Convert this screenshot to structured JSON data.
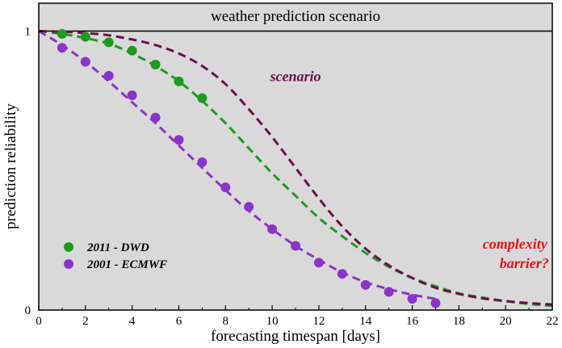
{
  "chart_data": {
    "type": "line",
    "title": "weather prediction scenario",
    "xlabel": "forecasting timespan [days]",
    "ylabel": "prediction reliability",
    "xlim": [
      0,
      22
    ],
    "ylim": [
      0,
      1.1
    ],
    "x_ticks": [
      "0",
      "2",
      "4",
      "6",
      "8",
      "10",
      "12",
      "14",
      "16",
      "18",
      "20",
      "22"
    ],
    "y_ticks": [
      "0",
      "1"
    ],
    "grid": false,
    "legend_position": "bottom-left",
    "colors": {
      "dwd": "#1f9a1f",
      "ecmwf": "#8a35c9",
      "scenario": "#6b0f4a",
      "complexity": "#ee1111",
      "background": "#d9d9d9"
    },
    "series": [
      {
        "name": "2011 - DWD",
        "kind": "points",
        "color": "#1f9a1f",
        "x": [
          1,
          2,
          3,
          4,
          5,
          6,
          7
        ],
        "y": [
          0.99,
          0.98,
          0.96,
          0.93,
          0.88,
          0.82,
          0.76
        ]
      },
      {
        "name": "2001 - ECMWF",
        "kind": "points",
        "color": "#8a35c9",
        "x": [
          1,
          2,
          3,
          4,
          5,
          6,
          7,
          8,
          9,
          10,
          11,
          12,
          13,
          14,
          15,
          16,
          17
        ],
        "y": [
          0.94,
          0.89,
          0.84,
          0.77,
          0.69,
          0.61,
          0.53,
          0.44,
          0.37,
          0.29,
          0.23,
          0.17,
          0.13,
          0.09,
          0.065,
          0.04,
          0.025
        ]
      },
      {
        "kind": "dashed-fit",
        "color": "#1f9a1f",
        "x": [
          0,
          1,
          2,
          3,
          4,
          5,
          6,
          7,
          8,
          9,
          10,
          11,
          12,
          13,
          14,
          15,
          16,
          17,
          18,
          19,
          20,
          21,
          22
        ],
        "y": [
          1.0,
          0.99,
          0.975,
          0.955,
          0.92,
          0.875,
          0.82,
          0.75,
          0.67,
          0.58,
          0.49,
          0.41,
          0.33,
          0.265,
          0.205,
          0.155,
          0.115,
          0.085,
          0.06,
          0.045,
          0.032,
          0.022,
          0.015
        ]
      },
      {
        "kind": "dashed-fit",
        "color": "#8a35c9",
        "x": [
          0,
          1,
          2,
          3,
          4,
          5,
          6,
          7,
          8,
          9,
          10,
          11,
          12,
          13,
          14,
          15,
          16,
          17
        ],
        "y": [
          1.0,
          0.95,
          0.89,
          0.82,
          0.745,
          0.67,
          0.59,
          0.51,
          0.43,
          0.355,
          0.29,
          0.23,
          0.18,
          0.135,
          0.1,
          0.075,
          0.055,
          0.04
        ]
      },
      {
        "kind": "dashed-fit",
        "color": "#6b0f4a",
        "x": [
          0,
          1,
          2,
          3,
          4,
          5,
          6,
          7,
          8,
          9,
          10,
          11,
          12,
          13,
          14,
          15,
          16,
          17,
          18,
          19,
          20,
          21,
          22
        ],
        "y": [
          1.0,
          0.998,
          0.993,
          0.985,
          0.97,
          0.95,
          0.92,
          0.875,
          0.81,
          0.72,
          0.62,
          0.51,
          0.4,
          0.3,
          0.22,
          0.16,
          0.115,
          0.08,
          0.058,
          0.042,
          0.032,
          0.025,
          0.02
        ]
      }
    ],
    "annotations": [
      {
        "text": "scenario",
        "color": "#6b0f4a",
        "x": 11,
        "y": 0.82
      },
      {
        "text": "complexity",
        "color": "#ee1111",
        "x": 20.4,
        "y": 0.22
      },
      {
        "text": "barrier?",
        "color": "#ee1111",
        "x": 20.8,
        "y": 0.15
      }
    ]
  }
}
